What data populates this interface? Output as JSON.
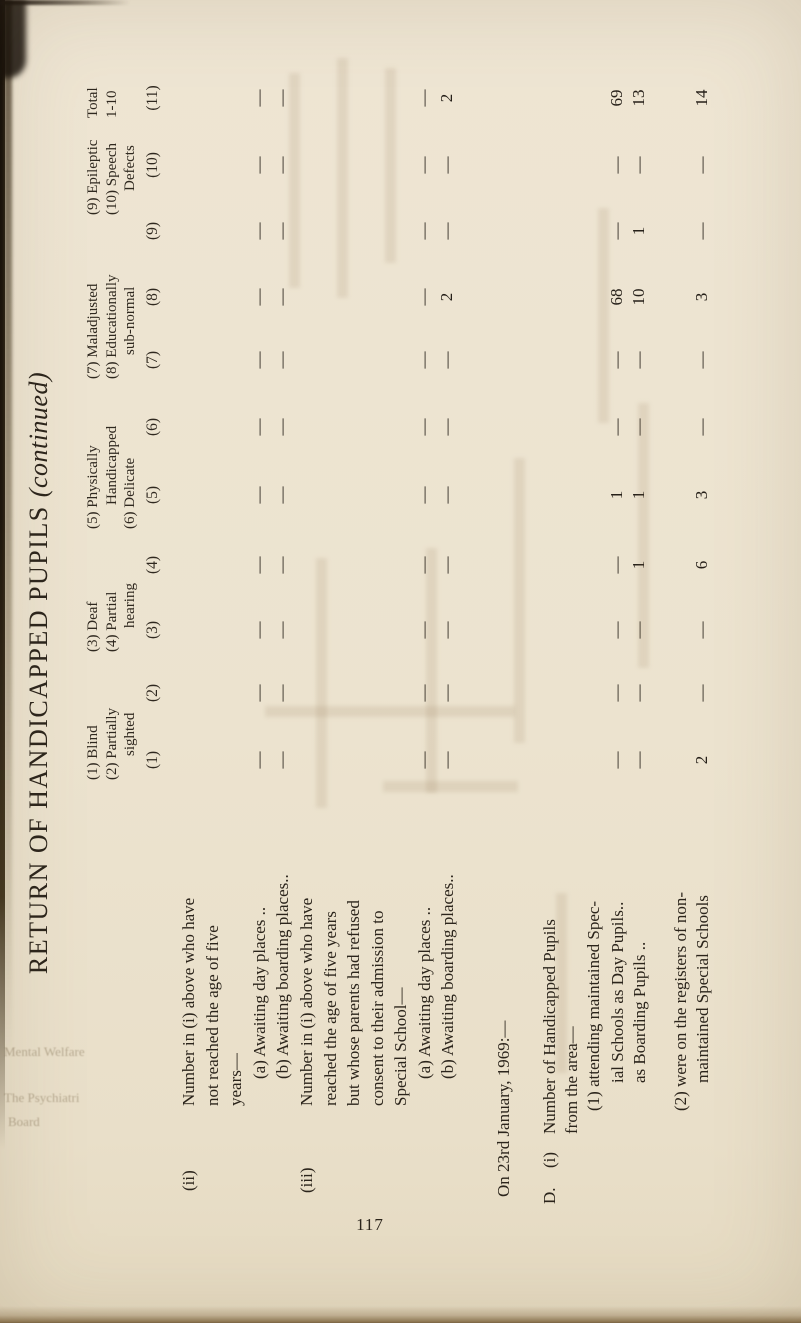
{
  "page": {
    "title_main": "RETURN OF HANDICAPPED PUPILS",
    "title_continued": "(continued)",
    "page_number": "117",
    "date_line": "On 23rd January, 1969:—"
  },
  "table": {
    "column_groups": [
      {
        "lines": [
          "(1) Blind",
          "(2) Partially",
          "sighted"
        ]
      },
      {
        "lines": [
          "(3) Deaf",
          "(4) Partial",
          "hearing"
        ]
      },
      {
        "lines": [
          "(5) Physically",
          "Handicapped",
          "(6) Delicate"
        ]
      },
      {
        "lines": [
          "(7) Maladjusted",
          "(8) Educationally",
          "sub-normal"
        ]
      },
      {
        "lines": [
          "(9) Epileptic",
          "(10) Speech",
          "Defects"
        ]
      },
      {
        "lines": [
          "Total",
          "1-10"
        ]
      }
    ],
    "column_numbers": [
      "(1)",
      "(2)",
      "(3)",
      "(4)",
      "(5)",
      "(6)",
      "(7)",
      "(8)",
      "(9)",
      "(10)",
      "(11)"
    ],
    "sections": [
      {
        "name": "ii",
        "lines": [
          {
            "hang": "(ii)",
            "text": "Number in (i) above who have"
          },
          {
            "text": "not reached the age of five"
          },
          {
            "text": "years—"
          },
          {
            "text": "(a) Awaiting day places ..",
            "values": [
              "—",
              "—",
              "—",
              "—",
              "—",
              "—",
              "—",
              "—",
              "—",
              "—",
              "—"
            ]
          },
          {
            "text": "(b) Awaiting boarding places..",
            "values": [
              "—",
              "—",
              "—",
              "—",
              "—",
              "—",
              "—",
              "—",
              "—",
              "—",
              "—"
            ]
          }
        ]
      },
      {
        "name": "iii",
        "lines": [
          {
            "hang": "(iii)",
            "text": "Number in (i) above who have"
          },
          {
            "text": "reached the age of five years"
          },
          {
            "text": "but whose parents had refused"
          },
          {
            "text": "consent to their admission to"
          },
          {
            "text": "Special School—"
          },
          {
            "text": "(a) Awaiting day places ..",
            "values": [
              "—",
              "—",
              "—",
              "—",
              "—",
              "—",
              "—",
              "—",
              "—",
              "—",
              "—"
            ]
          },
          {
            "text": "(b) Awaiting boarding places..",
            "values": [
              "—",
              "—",
              "—",
              "—",
              "—",
              "—",
              "—",
              "2",
              "—",
              "—",
              "2"
            ]
          }
        ]
      },
      {
        "name": "date",
        "lines": [
          {
            "text": "On 23rd January, 1969:—"
          }
        ]
      },
      {
        "name": "D",
        "lines": [
          {
            "hang": "D.",
            "hang2": "(i)",
            "text": "Number of Handicapped Pupils"
          },
          {
            "text": "from the area—"
          },
          {
            "text": "(1) attending maintained Spec-"
          },
          {
            "text": "ial Schools as Day Pupils..",
            "values": [
              "—",
              "—",
              "—",
              "—",
              "1",
              "—",
              "—",
              "68",
              "—",
              "—",
              "69"
            ]
          },
          {
            "text": "as Boarding Pupils ..",
            "values": [
              "—",
              "—",
              "—",
              "1",
              "1",
              "—",
              "—",
              "10",
              "1",
              "—",
              "13"
            ]
          },
          {
            "text": "(2) were on the registers of non-",
            "values": null
          },
          {
            "text": "maintained Special Schools",
            "values": [
              "2",
              "—",
              "—",
              "6",
              "3",
              "—",
              "—",
              "3",
              "—",
              "—",
              "14"
            ]
          }
        ]
      }
    ]
  },
  "ghost": [
    "Mental Welfare",
    "The Psychiatri",
    "Board"
  ]
}
